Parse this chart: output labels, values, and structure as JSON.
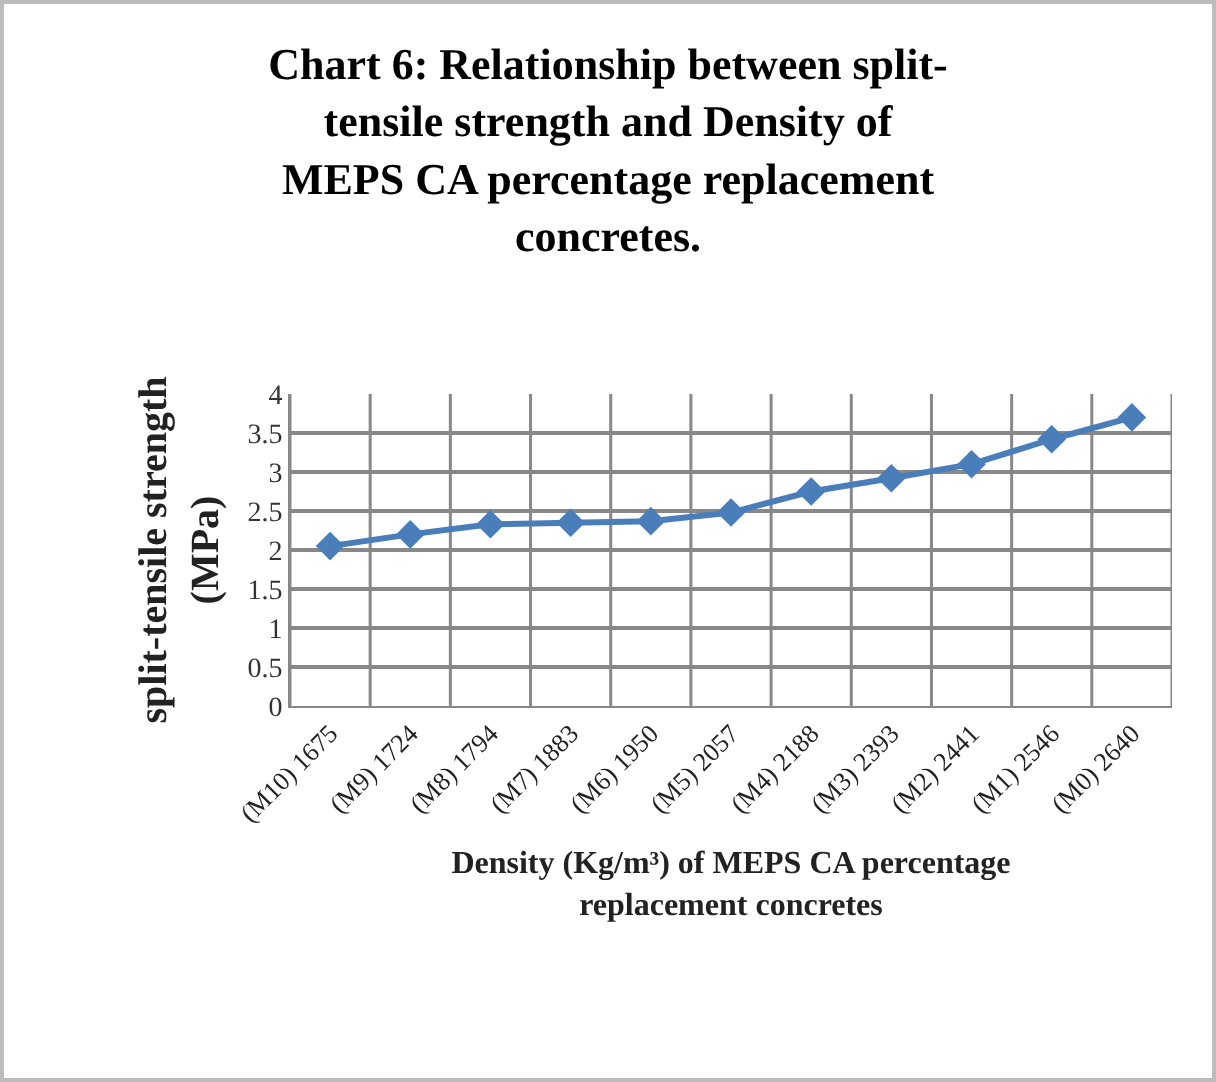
{
  "chart_data": {
    "type": "line",
    "title": "Chart 6: Relationship between split-\ntensile strength and Density of\nMEPS CA percentage replacement\nconcretes.",
    "xlabel": "Density (Kg/m³) of MEPS CA percentage\nreplacement concretes",
    "ylabel": "split-tensile strength\n(MPa)",
    "categories": [
      "(M10) 1675",
      "(M9) 1724",
      "(M8) 1794",
      "(M7) 1883",
      "(M6) 1950",
      "(M5) 2057",
      "(M4) 2188",
      "(M3) 2393",
      "(M2) 2441",
      "(M1) 2546",
      "(M0) 2640"
    ],
    "series": [
      {
        "color": "#4a7ebb",
        "values": [
          2.05,
          2.2,
          2.33,
          2.35,
          2.37,
          2.48,
          2.75,
          2.92,
          3.1,
          3.42,
          3.7
        ]
      }
    ],
    "ylim": [
      0,
      4
    ],
    "yticks": [
      0,
      0.5,
      1,
      1.5,
      2,
      2.5,
      3,
      3.5,
      4
    ],
    "grid": true,
    "marker": "diamond",
    "line_style": "solid"
  }
}
